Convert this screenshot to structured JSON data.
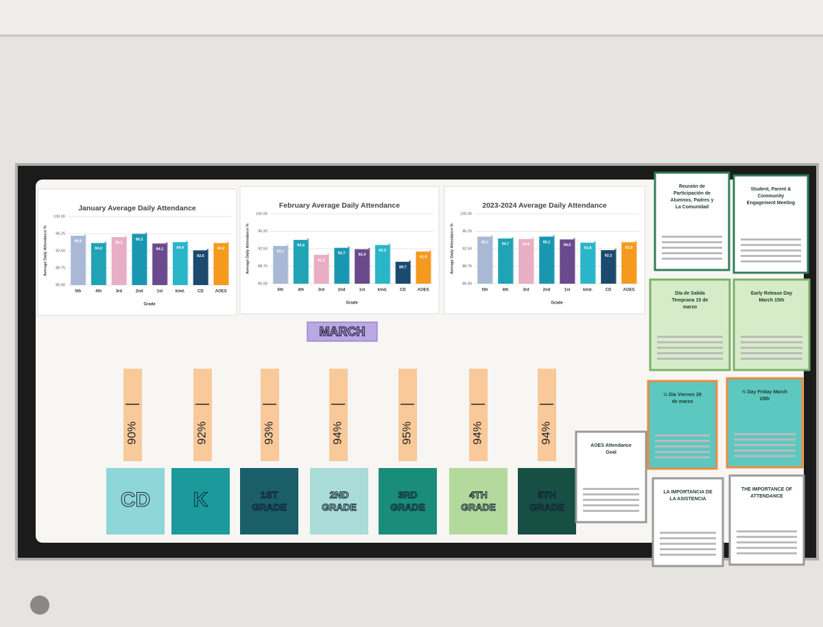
{
  "chart_data": [
    {
      "type": "bar",
      "title": "January Average Daily Attendance",
      "ylabel": "Average Daily Attendance %",
      "xlabel": "Grade",
      "categories": [
        "5th",
        "4th",
        "3rd",
        "2nd",
        "1st",
        "kind.",
        "CD",
        "AOES"
      ],
      "values": [
        95.8,
        94.2,
        95.5,
        96.2,
        94.1,
        94.4,
        92.6,
        94.2
      ],
      "colors": [
        "#a9b8d4",
        "#1fa3b5",
        "#e8aec4",
        "#1a97b0",
        "#6a4a8c",
        "#2ab5c9",
        "#1c4a6e",
        "#f59a1e"
      ],
      "ylim": [
        85,
        100
      ],
      "yticks": [
        {
          "value": 85,
          "label": "85.00"
        },
        {
          "value": 88.75,
          "label": "88.75"
        },
        {
          "value": 92.5,
          "label": "92.50"
        },
        {
          "value": 96.25,
          "label": "96.25"
        },
        {
          "value": 100,
          "label": "100.00"
        }
      ],
      "grid": true
    },
    {
      "type": "bar",
      "title": "February Average Daily Attendance",
      "ylabel": "Average Daily Attendance %",
      "xlabel": "Grade",
      "categories": [
        "5th",
        "4th",
        "3rd",
        "2nd",
        "1st",
        "kind.",
        "CD",
        "AOES"
      ],
      "values": [
        93.1,
        94.4,
        91.2,
        92.7,
        92.4,
        93.3,
        89.7,
        91.9
      ],
      "colors": [
        "#a9b8d4",
        "#1fa3b5",
        "#e8aec4",
        "#1a97b0",
        "#6a4a8c",
        "#2ab5c9",
        "#1c4a6e",
        "#f59a1e"
      ],
      "ylim": [
        85,
        100
      ],
      "yticks": [
        {
          "value": 85,
          "label": "85.00"
        },
        {
          "value": 88.75,
          "label": "88.75"
        },
        {
          "value": 92.5,
          "label": "92.50"
        },
        {
          "value": 96.25,
          "label": "96.25"
        },
        {
          "value": 100,
          "label": "100.00"
        }
      ],
      "grid": true
    },
    {
      "type": "bar",
      "title": "2023-2024 Average Daily Attendance",
      "ylabel": "Average Daily Attendance %",
      "xlabel": "Grade",
      "categories": [
        "5th",
        "4th",
        "3rd",
        "2nd",
        "1st",
        "kind.",
        "CD",
        "AOES"
      ],
      "values": [
        95.1,
        94.7,
        94.6,
        95.1,
        94.5,
        93.8,
        92.2,
        93.9
      ],
      "colors": [
        "#a9b8d4",
        "#1fa3b5",
        "#e8aec4",
        "#1a97b0",
        "#6a4a8c",
        "#2ab5c9",
        "#1c4a6e",
        "#f59a1e"
      ],
      "ylim": [
        85,
        100
      ],
      "yticks": [
        {
          "value": 85,
          "label": "85.00"
        },
        {
          "value": 88.75,
          "label": "88.75"
        },
        {
          "value": 92.5,
          "label": "92.50"
        },
        {
          "value": 96.25,
          "label": "96.25"
        },
        {
          "value": 100,
          "label": "100.00"
        }
      ],
      "grid": true
    }
  ],
  "board": {
    "heading": "MARCH",
    "goals": [
      "90%",
      "92%",
      "93%",
      "94%",
      "95%",
      "94%",
      "94%"
    ],
    "grades": [
      "CD",
      "K",
      "1ST GRADE",
      "2ND GRADE",
      "3RD GRADE",
      "4TH GRADE",
      "5TH GRADE"
    ],
    "flyers": [
      "Reunión de Participación de Alumnos, Padres y La Comunidad",
      "Student, Parent & Community Engagement Meeting",
      "Día de Salida Temprana 15 de marzo",
      "Early Release Day March 15th",
      "½ Día Viernes 29 de marzo",
      "½ Day Friday March 29th",
      "AOES Attendance Goal",
      "LA IMPORTANCIA DE LA ASISTENCIA",
      "THE IMPORTANCE OF ATTENDANCE"
    ]
  }
}
